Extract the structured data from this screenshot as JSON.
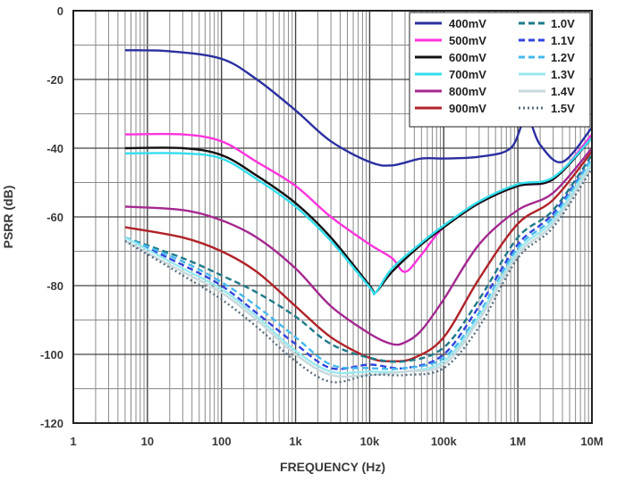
{
  "chart_data": {
    "type": "line",
    "title": "",
    "xlabel": "FREQUENCY (Hz)",
    "ylabel": "PSRR (dB)",
    "xscale": "log",
    "xlim": [
      1,
      10000000
    ],
    "ylim": [
      -120,
      0
    ],
    "grid": true,
    "legend_position": "top-right",
    "x_ticks": [
      {
        "value": 1,
        "label": "1"
      },
      {
        "value": 10,
        "label": "10"
      },
      {
        "value": 100,
        "label": "100"
      },
      {
        "value": 1000,
        "label": "1k"
      },
      {
        "value": 10000,
        "label": "10k"
      },
      {
        "value": 100000,
        "label": "100k"
      },
      {
        "value": 1000000,
        "label": "1M"
      },
      {
        "value": 10000000,
        "label": "10M"
      }
    ],
    "y_ticks": [
      {
        "value": 0,
        "label": "0"
      },
      {
        "value": -20,
        "label": "-20"
      },
      {
        "value": -40,
        "label": "-40"
      },
      {
        "value": -60,
        "label": "-60"
      },
      {
        "value": -80,
        "label": "-80"
      },
      {
        "value": -100,
        "label": "-100"
      },
      {
        "value": -120,
        "label": "-120"
      }
    ],
    "series": [
      {
        "name": "400mV",
        "color": "#2a2fa0",
        "dash": "solid",
        "x": [
          5,
          20,
          100,
          300,
          1000,
          3000,
          10000,
          20000,
          50000,
          100000,
          300000,
          800000,
          1300000,
          2000000,
          4000000,
          10000000
        ],
        "y": [
          -11.5,
          -11.8,
          -14,
          -20,
          -29,
          -38,
          -44,
          -45,
          -43,
          -43,
          -42.5,
          -40,
          -31,
          -39,
          -44,
          -34
        ]
      },
      {
        "name": "500mV",
        "color": "#ff33dd",
        "dash": "solid",
        "x": [
          5,
          30,
          100,
          300,
          1000,
          3000,
          10000,
          20000,
          30000,
          50000,
          100000,
          300000,
          1000000,
          3000000,
          10000000
        ],
        "y": [
          -36,
          -36,
          -38,
          -44,
          -51,
          -60,
          -68,
          -72,
          -76,
          -71,
          -63,
          -56,
          -51,
          -49,
          -36
        ]
      },
      {
        "name": "600mV",
        "color": "#111111",
        "dash": "solid",
        "x": [
          5,
          30,
          100,
          300,
          1000,
          3000,
          10000,
          12000,
          20000,
          50000,
          100000,
          300000,
          1000000,
          3000000,
          10000000
        ],
        "y": [
          -40,
          -40,
          -42,
          -48,
          -56,
          -66,
          -80,
          -82,
          -76,
          -68,
          -63,
          -56,
          -51,
          -49,
          -37
        ]
      },
      {
        "name": "700mV",
        "color": "#33ddee",
        "dash": "solid",
        "x": [
          5,
          30,
          100,
          300,
          1000,
          3000,
          10000,
          12000,
          20000,
          50000,
          100000,
          300000,
          1000000,
          3000000,
          10000000
        ],
        "y": [
          -41.5,
          -41.5,
          -43,
          -49,
          -57,
          -67,
          -80.5,
          -82,
          -75,
          -67.5,
          -62.5,
          -55.5,
          -50.5,
          -48.5,
          -37
        ]
      },
      {
        "name": "800mV",
        "color": "#a42890",
        "dash": "solid",
        "x": [
          5,
          30,
          100,
          300,
          1000,
          3000,
          10000,
          20000,
          30000,
          50000,
          100000,
          300000,
          1000000,
          3000000,
          10000000
        ],
        "y": [
          -57,
          -58,
          -61,
          -66,
          -75,
          -86,
          -94,
          -97,
          -96.5,
          -93,
          -84,
          -68,
          -58,
          -53,
          -40
        ]
      },
      {
        "name": "900mV",
        "color": "#b02228",
        "dash": "solid",
        "x": [
          5,
          30,
          100,
          300,
          1000,
          3000,
          10000,
          20000,
          40000,
          100000,
          300000,
          1000000,
          3000000,
          10000000
        ],
        "y": [
          -63,
          -66,
          -70,
          -76,
          -86,
          -95,
          -101,
          -102,
          -101,
          -95,
          -78,
          -62,
          -55,
          -41
        ]
      },
      {
        "name": "1.0V",
        "color": "#1e7a8a",
        "dash": "dashed",
        "x": [
          5,
          30,
          100,
          300,
          1000,
          3000,
          10000,
          30000,
          100000,
          300000,
          1000000,
          3000000,
          10000000
        ],
        "y": [
          -66,
          -72,
          -77,
          -82,
          -89,
          -97,
          -101,
          -102,
          -98,
          -84,
          -66,
          -58,
          -42
        ]
      },
      {
        "name": "1.1V",
        "color": "#3344dd",
        "dash": "dashed",
        "x": [
          5,
          30,
          100,
          300,
          1000,
          3000,
          10000,
          30000,
          100000,
          300000,
          1000000,
          3000000,
          10000000
        ],
        "y": [
          -66,
          -74,
          -80,
          -88,
          -97,
          -104,
          -103,
          -104,
          -100,
          -86,
          -68,
          -59,
          -43
        ]
      },
      {
        "name": "1.2V",
        "color": "#44b8ee",
        "dash": "dashed",
        "x": [
          5,
          30,
          100,
          300,
          1000,
          3000,
          10000,
          30000,
          100000,
          300000,
          1000000,
          3000000,
          10000000
        ],
        "y": [
          -66,
          -73,
          -79,
          -86,
          -95,
          -103,
          -104,
          -104,
          -101,
          -88,
          -69,
          -60,
          -43
        ]
      },
      {
        "name": "1.3V",
        "color": "#99e8ee",
        "dash": "solid",
        "x": [
          5,
          30,
          100,
          300,
          1000,
          3000,
          10000,
          30000,
          100000,
          300000,
          1000000,
          3000000,
          10000000
        ],
        "y": [
          -66,
          -75,
          -81,
          -89,
          -99,
          -105,
          -105,
          -105,
          -102,
          -89,
          -70,
          -61,
          -44
        ]
      },
      {
        "name": "1.4V",
        "color": "#c8d8dc",
        "dash": "solid",
        "x": [
          5,
          30,
          100,
          300,
          1000,
          3000,
          10000,
          30000,
          100000,
          300000,
          1000000,
          3000000,
          10000000
        ],
        "y": [
          -67,
          -76,
          -82,
          -90,
          -100,
          -106,
          -106,
          -105,
          -103,
          -90,
          -71,
          -62,
          -45
        ]
      },
      {
        "name": "1.5V",
        "color": "#5a7080",
        "dash": "dotted",
        "x": [
          5,
          30,
          100,
          300,
          1000,
          3000,
          10000,
          30000,
          100000,
          300000,
          1000000,
          3000000,
          10000000
        ],
        "y": [
          -67,
          -77,
          -84,
          -92,
          -102,
          -108,
          -106,
          -106,
          -104,
          -92,
          -72,
          -63,
          -46
        ]
      }
    ]
  }
}
